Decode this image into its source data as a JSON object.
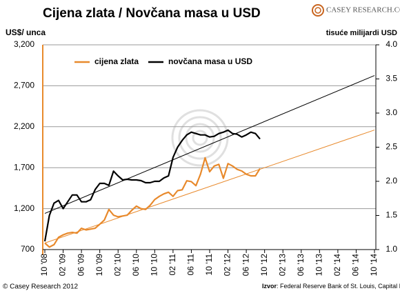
{
  "chart_data": {
    "type": "line",
    "title": "Cijena zlata / Novčana masa u USD",
    "logo": "CASEY RESEARCH.COM",
    "y_label": "US$/ unca",
    "y2_label": "tisuće milijardi USD",
    "copyright": "© Casey Research 2012",
    "source_label": "Izvor",
    "source": ": Federal Reserve Bank of St. Louis, Capital IQ",
    "legend": "top-left",
    "grid": true,
    "categories": [
      "10 '08",
      null,
      null,
      null,
      "02 '09",
      null,
      null,
      null,
      "06 '09",
      null,
      null,
      null,
      "10 '09",
      null,
      null,
      null,
      "02 '10",
      null,
      null,
      null,
      "06 '10",
      null,
      null,
      null,
      "10 '10",
      null,
      null,
      null,
      "02 '11",
      null,
      null,
      null,
      "06 '11",
      null,
      null,
      null,
      "10 '11",
      null,
      null,
      null,
      "02 '12",
      null,
      null,
      null,
      "06 '12",
      null,
      null,
      null,
      "10 '12",
      null,
      null,
      null,
      "02 '13",
      null,
      null,
      null,
      "06 '13",
      null,
      null,
      null,
      "10 '13",
      null,
      null,
      null,
      "02 '14",
      null,
      null,
      null,
      "06 '14",
      null,
      null,
      null,
      "10 '14"
    ],
    "ylim": [
      700,
      3200
    ],
    "yticks": [
      700,
      {
        "value": 1200,
        "label": "1,200"
      },
      {
        "value": 1700,
        "label": "1,700"
      },
      {
        "value": 2200,
        "label": "2,200"
      },
      {
        "value": 2700,
        "label": "2,700"
      },
      {
        "value": 3200,
        "label": "3,200"
      }
    ],
    "y2lim": [
      1.0,
      4.0
    ],
    "y2ticks": [
      {
        "value": 1.0,
        "label": "1.0"
      },
      1.5,
      {
        "value": 2.0,
        "label": "2.0"
      },
      2.5,
      {
        "value": 3.0,
        "label": "3.0"
      },
      3.5,
      {
        "value": 4.0,
        "label": "4.0"
      }
    ],
    "series": [
      {
        "name": "cijena zlata",
        "color": "#e8892b",
        "axis": "y",
        "values": [
          780,
          730,
          760,
          850,
          880,
          900,
          910,
          900,
          960,
          940,
          950,
          960,
          1010,
          1060,
          1190,
          1120,
          1100,
          1110,
          1120,
          1180,
          1230,
          1200,
          1190,
          1240,
          1310,
          1350,
          1380,
          1400,
          1350,
          1420,
          1430,
          1540,
          1530,
          1480,
          1620,
          1820,
          1650,
          1720,
          1740,
          1570,
          1750,
          1720,
          1680,
          1660,
          1620,
          1600,
          1600,
          1690,
          null,
          null,
          null,
          null,
          null,
          null,
          null,
          null,
          null,
          null,
          null,
          null,
          null,
          null,
          null,
          null,
          null,
          null,
          null,
          null,
          null,
          null,
          null,
          null,
          null
        ]
      },
      {
        "name": "novčana masa u USD",
        "color": "#000000",
        "axis": "y2",
        "values": [
          1.12,
          1.5,
          1.68,
          1.72,
          1.6,
          1.7,
          1.8,
          1.8,
          1.7,
          1.7,
          1.73,
          1.88,
          1.97,
          1.97,
          1.94,
          2.15,
          2.08,
          2.02,
          2.03,
          2.02,
          2.02,
          2.01,
          1.98,
          1.98,
          2.0,
          2.0,
          2.05,
          2.08,
          2.35,
          2.5,
          2.6,
          2.68,
          2.72,
          2.7,
          2.68,
          2.68,
          2.65,
          2.66,
          2.7,
          2.72,
          2.75,
          2.7,
          2.69,
          2.65,
          2.68,
          2.72,
          2.7,
          2.62,
          null,
          null,
          null,
          null,
          null,
          null,
          null,
          null,
          null,
          null,
          null,
          null,
          null,
          null,
          null,
          null,
          null,
          null,
          null,
          null,
          null,
          null,
          null,
          null,
          null
        ]
      }
    ],
    "trends": [
      {
        "color": "#e8892b",
        "axis": "y",
        "values": [
          780,
          2160
        ]
      },
      {
        "color": "#000000",
        "axis": "y2",
        "values": [
          1.53,
          3.55
        ]
      }
    ]
  }
}
